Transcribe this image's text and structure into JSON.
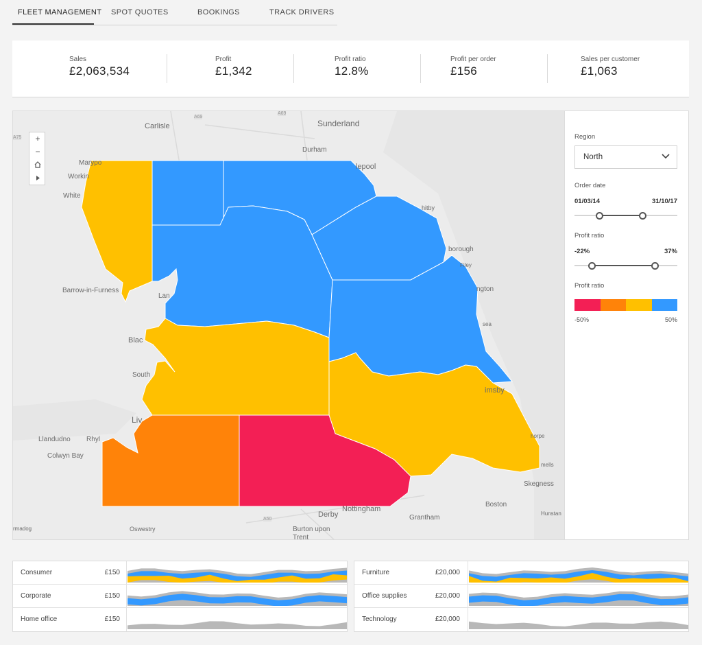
{
  "tabs": [
    {
      "label": "FLEET MANAGEMENT",
      "active": true
    },
    {
      "label": "SPOT QUOTES"
    },
    {
      "label": "BOOKINGS"
    },
    {
      "label": "TRACK DRIVERS"
    }
  ],
  "kpis": [
    {
      "label": "Sales",
      "value": "£2,063,534"
    },
    {
      "label": "Profit",
      "value": "£1,342"
    },
    {
      "label": "Profit ratio",
      "value": "12.8%"
    },
    {
      "label": "Profit per order",
      "value": "£156"
    },
    {
      "label": "Sales per customer",
      "value": "£1,063"
    }
  ],
  "map": {
    "controls": [
      "+",
      "−"
    ],
    "places": [
      "Carlisle",
      "Sunderland",
      "Durham",
      "Marypo",
      "Workin",
      "White",
      "lepool",
      "hitby",
      "borough",
      "Filey",
      "Barrow-in-Furness",
      "Lan",
      "ngton",
      "sea",
      "Blac",
      "South",
      "Liv",
      "imsby",
      "Llandudno",
      "Rhyl",
      "Colwyn Bay",
      "horpe",
      "mells",
      "Skegness",
      "Boston",
      "Hunstan",
      "Derby",
      "Nottingham",
      "Grantham",
      "Oswestry",
      "Burton upon Trent",
      "rmadog",
      "A69",
      "A69",
      "A50",
      "A75"
    ],
    "region_colors": {
      "negative": "#f31f55",
      "low": "#ff8309",
      "mid": "#ffc000",
      "high": "#3399ff"
    }
  },
  "filters": {
    "region_label": "Region",
    "region_value": "North",
    "order_date_label": "Order date",
    "order_date_start": "01/03/14",
    "order_date_end": "31/10/17",
    "order_date_range": [
      0.24,
      0.66
    ],
    "profit_ratio_label": "Profit ratio",
    "profit_ratio_min": "-22%",
    "profit_ratio_max": "37%",
    "profit_ratio_range": [
      0.17,
      0.78
    ],
    "legend_label": "Profit ratio",
    "legend_min": "-50%",
    "legend_max": "50%",
    "legend_colors": [
      "#f31f55",
      "#ff8309",
      "#ffc000",
      "#3399ff"
    ]
  },
  "segments_left": [
    {
      "name": "Consumer",
      "value": "£150"
    },
    {
      "name": "Corporate",
      "value": "£150"
    },
    {
      "name": "Home office",
      "value": "£150"
    }
  ],
  "segments_right": [
    {
      "name": "Furniture",
      "value": "£20,000"
    },
    {
      "name": "Office supplies",
      "value": "£20,000"
    },
    {
      "name": "Technology",
      "value": "£20,000"
    }
  ]
}
